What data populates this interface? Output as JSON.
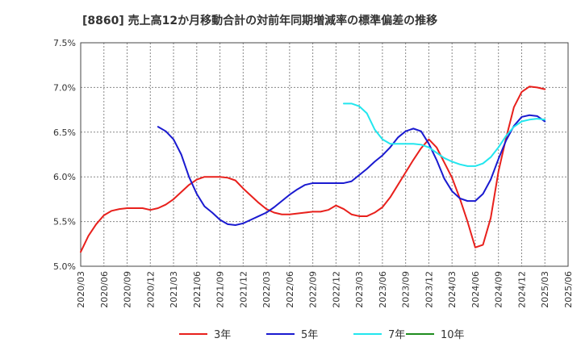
{
  "chart_data": {
    "type": "line",
    "title": "[8860]  売上高12か月移動合計の対前年同期増減率の標準偏差の推移",
    "xlabel": "",
    "ylabel": "",
    "ylim": [
      5.0,
      7.5
    ],
    "yticks": [
      "5.0%",
      "5.5%",
      "6.0%",
      "6.5%",
      "7.0%",
      "7.5%"
    ],
    "xticks": [
      "2020/03",
      "2020/06",
      "2020/09",
      "2020/12",
      "2021/03",
      "2021/06",
      "2021/09",
      "2021/12",
      "2022/03",
      "2022/06",
      "2022/09",
      "2022/12",
      "2023/03",
      "2023/06",
      "2023/09",
      "2023/12",
      "2024/03",
      "2024/06",
      "2024/09",
      "2024/12",
      "2025/03",
      "2025/06"
    ],
    "grid": true,
    "legend_position": "bottom",
    "series": [
      {
        "name": "3年",
        "color": "#e8201c",
        "points": [
          [
            "2020/03",
            5.16
          ],
          [
            "2020/04",
            5.34
          ],
          [
            "2020/05",
            5.47
          ],
          [
            "2020/06",
            5.57
          ],
          [
            "2020/07",
            5.62
          ],
          [
            "2020/08",
            5.64
          ],
          [
            "2020/09",
            5.65
          ],
          [
            "2020/10",
            5.65
          ],
          [
            "2020/11",
            5.65
          ],
          [
            "2020/12",
            5.63
          ],
          [
            "2021/01",
            5.65
          ],
          [
            "2021/02",
            5.69
          ],
          [
            "2021/03",
            5.75
          ],
          [
            "2021/04",
            5.83
          ],
          [
            "2021/05",
            5.91
          ],
          [
            "2021/06",
            5.97
          ],
          [
            "2021/07",
            6.0
          ],
          [
            "2021/08",
            6.0
          ],
          [
            "2021/09",
            6.0
          ],
          [
            "2021/10",
            5.99
          ],
          [
            "2021/11",
            5.96
          ],
          [
            "2021/12",
            5.87
          ],
          [
            "2022/01",
            5.79
          ],
          [
            "2022/02",
            5.71
          ],
          [
            "2022/03",
            5.64
          ],
          [
            "2022/04",
            5.6
          ],
          [
            "2022/05",
            5.58
          ],
          [
            "2022/06",
            5.58
          ],
          [
            "2022/07",
            5.59
          ],
          [
            "2022/08",
            5.6
          ],
          [
            "2022/09",
            5.61
          ],
          [
            "2022/10",
            5.61
          ],
          [
            "2022/11",
            5.63
          ],
          [
            "2022/12",
            5.68
          ],
          [
            "2023/01",
            5.64
          ],
          [
            "2023/02",
            5.58
          ],
          [
            "2023/03",
            5.56
          ],
          [
            "2023/04",
            5.56
          ],
          [
            "2023/05",
            5.6
          ],
          [
            "2023/06",
            5.66
          ],
          [
            "2023/07",
            5.77
          ],
          [
            "2023/08",
            5.91
          ],
          [
            "2023/09",
            6.05
          ],
          [
            "2023/10",
            6.19
          ],
          [
            "2023/11",
            6.32
          ],
          [
            "2023/12",
            6.42
          ],
          [
            "2024/01",
            6.33
          ],
          [
            "2024/02",
            6.16
          ],
          [
            "2024/03",
            5.99
          ],
          [
            "2024/04",
            5.76
          ],
          [
            "2024/05",
            5.5
          ],
          [
            "2024/06",
            5.21
          ],
          [
            "2024/07",
            5.24
          ],
          [
            "2024/08",
            5.54
          ],
          [
            "2024/09",
            6.06
          ],
          [
            "2024/10",
            6.44
          ],
          [
            "2024/11",
            6.78
          ],
          [
            "2024/12",
            6.95
          ],
          [
            "2025/01",
            7.01
          ],
          [
            "2025/02",
            7.0
          ],
          [
            "2025/03",
            6.98
          ]
        ]
      },
      {
        "name": "5年",
        "color": "#1a1ad0",
        "points": [
          [
            "2021/01",
            6.56
          ],
          [
            "2021/02",
            6.51
          ],
          [
            "2021/03",
            6.42
          ],
          [
            "2021/04",
            6.25
          ],
          [
            "2021/05",
            6.0
          ],
          [
            "2021/06",
            5.81
          ],
          [
            "2021/07",
            5.67
          ],
          [
            "2021/08",
            5.6
          ],
          [
            "2021/09",
            5.52
          ],
          [
            "2021/10",
            5.47
          ],
          [
            "2021/11",
            5.46
          ],
          [
            "2021/12",
            5.48
          ],
          [
            "2022/01",
            5.52
          ],
          [
            "2022/02",
            5.56
          ],
          [
            "2022/03",
            5.6
          ],
          [
            "2022/04",
            5.66
          ],
          [
            "2022/05",
            5.73
          ],
          [
            "2022/06",
            5.8
          ],
          [
            "2022/07",
            5.86
          ],
          [
            "2022/08",
            5.91
          ],
          [
            "2022/09",
            5.93
          ],
          [
            "2022/10",
            5.93
          ],
          [
            "2022/11",
            5.93
          ],
          [
            "2022/12",
            5.93
          ],
          [
            "2023/01",
            5.93
          ],
          [
            "2023/02",
            5.95
          ],
          [
            "2023/03",
            6.02
          ],
          [
            "2023/04",
            6.09
          ],
          [
            "2023/05",
            6.17
          ],
          [
            "2023/06",
            6.24
          ],
          [
            "2023/07",
            6.33
          ],
          [
            "2023/08",
            6.44
          ],
          [
            "2023/09",
            6.51
          ],
          [
            "2023/10",
            6.54
          ],
          [
            "2023/11",
            6.51
          ],
          [
            "2023/12",
            6.37
          ],
          [
            "2024/01",
            6.19
          ],
          [
            "2024/02",
            5.98
          ],
          [
            "2024/03",
            5.84
          ],
          [
            "2024/04",
            5.76
          ],
          [
            "2024/05",
            5.73
          ],
          [
            "2024/06",
            5.73
          ],
          [
            "2024/07",
            5.81
          ],
          [
            "2024/08",
            5.97
          ],
          [
            "2024/09",
            6.2
          ],
          [
            "2024/10",
            6.41
          ],
          [
            "2024/11",
            6.57
          ],
          [
            "2024/12",
            6.67
          ],
          [
            "2025/01",
            6.69
          ],
          [
            "2025/02",
            6.68
          ],
          [
            "2025/03",
            6.62
          ]
        ]
      },
      {
        "name": "7年",
        "color": "#22e6ee",
        "points": [
          [
            "2023/01",
            6.82
          ],
          [
            "2023/02",
            6.82
          ],
          [
            "2023/03",
            6.79
          ],
          [
            "2023/04",
            6.71
          ],
          [
            "2023/05",
            6.53
          ],
          [
            "2023/06",
            6.42
          ],
          [
            "2023/07",
            6.37
          ],
          [
            "2023/08",
            6.37
          ],
          [
            "2023/09",
            6.37
          ],
          [
            "2023/10",
            6.37
          ],
          [
            "2023/11",
            6.36
          ],
          [
            "2023/12",
            6.33
          ],
          [
            "2024/01",
            6.27
          ],
          [
            "2024/02",
            6.21
          ],
          [
            "2024/03",
            6.17
          ],
          [
            "2024/04",
            6.14
          ],
          [
            "2024/05",
            6.12
          ],
          [
            "2024/06",
            6.12
          ],
          [
            "2024/07",
            6.15
          ],
          [
            "2024/08",
            6.22
          ],
          [
            "2024/09",
            6.33
          ],
          [
            "2024/10",
            6.46
          ],
          [
            "2024/11",
            6.56
          ],
          [
            "2024/12",
            6.62
          ],
          [
            "2025/01",
            6.64
          ],
          [
            "2025/02",
            6.65
          ],
          [
            "2025/03",
            6.64
          ]
        ]
      },
      {
        "name": "10年",
        "color": "#1e8c1e",
        "points": []
      }
    ]
  }
}
